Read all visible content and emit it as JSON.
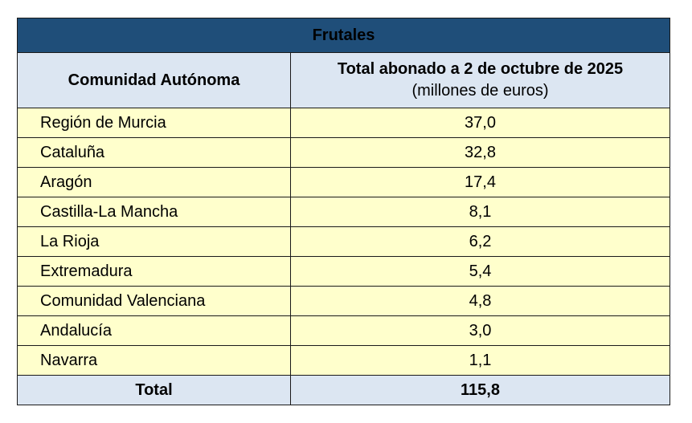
{
  "table": {
    "title": "Frutales",
    "header": {
      "col1": "Comunidad Autónoma",
      "col2_main": "Total abonado a 2 de octubre de 2025",
      "col2_sub": "(millones de euros)"
    },
    "rows": [
      {
        "region": "Región de Murcia",
        "value": "37,0"
      },
      {
        "region": "Cataluña",
        "value": "32,8"
      },
      {
        "region": "Aragón",
        "value": "17,4"
      },
      {
        "region": "Castilla-La Mancha",
        "value": "8,1"
      },
      {
        "region": "La Rioja",
        "value": "6,2"
      },
      {
        "region": "Extremadura",
        "value": "5,4"
      },
      {
        "region": "Comunidad Valenciana",
        "value": "4,8"
      },
      {
        "region": "Andalucía",
        "value": "3,0"
      },
      {
        "region": "Navarra",
        "value": "1,1"
      }
    ],
    "total": {
      "label": "Total",
      "value": "115,8"
    }
  }
}
